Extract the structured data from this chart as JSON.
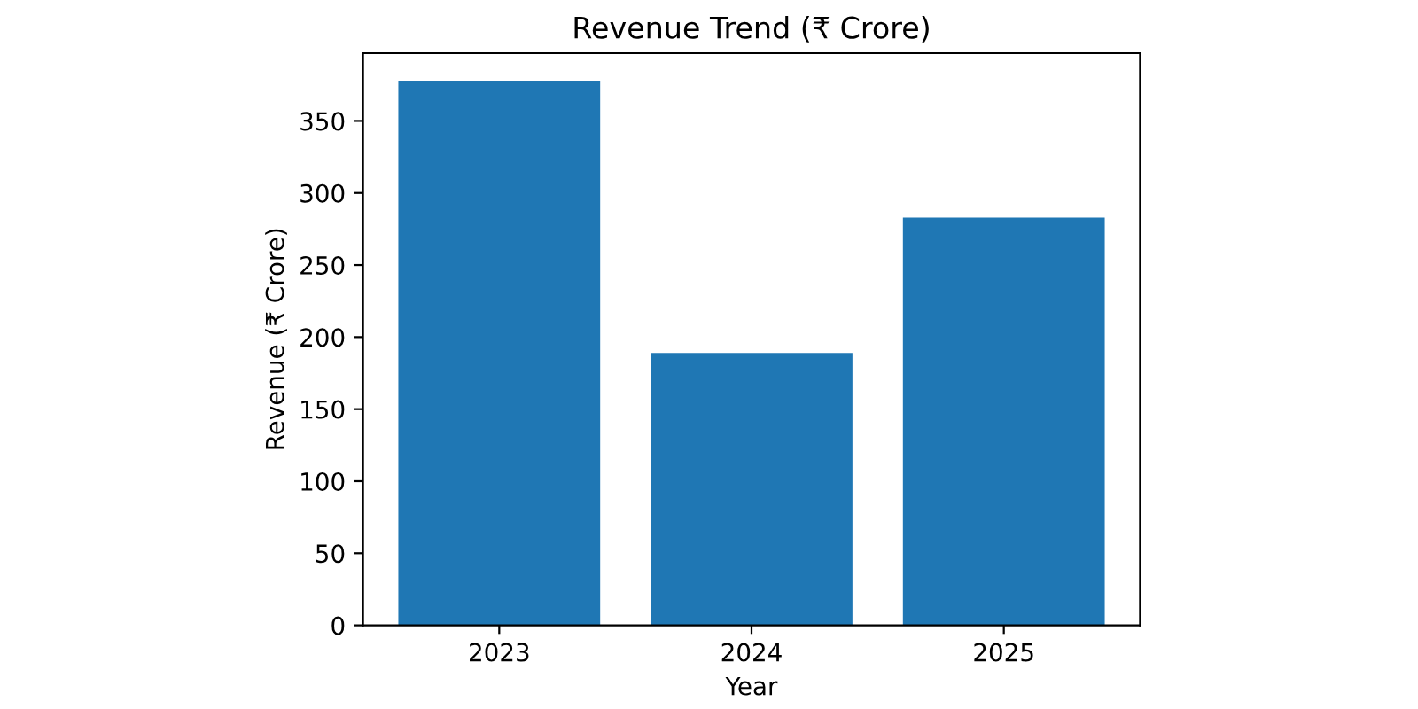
{
  "chart_data": {
    "type": "bar",
    "title": "Revenue Trend (₹ Crore)",
    "xlabel": "Year",
    "ylabel": "Revenue (₹ Crore)",
    "categories": [
      "2023",
      "2024",
      "2025"
    ],
    "values": [
      378,
      189,
      283
    ],
    "color": "#1f77b4",
    "ylim": [
      0,
      397
    ],
    "yticks": [
      0,
      50,
      100,
      150,
      200,
      250,
      300,
      350
    ],
    "grid": false
  }
}
